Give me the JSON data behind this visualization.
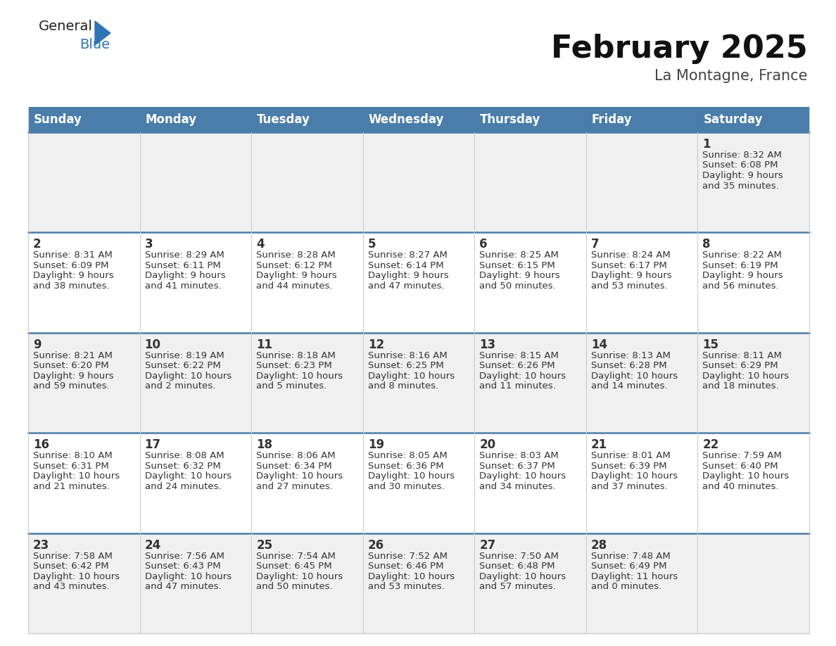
{
  "title": "February 2025",
  "subtitle": "La Montagne, France",
  "header_color": "#4a7daa",
  "header_text_color": "#ffffff",
  "days_of_week": [
    "Sunday",
    "Monday",
    "Tuesday",
    "Wednesday",
    "Thursday",
    "Friday",
    "Saturday"
  ],
  "bg_color": "#ffffff",
  "cell_bg_even": "#f0f0f0",
  "cell_bg_odd": "#ffffff",
  "separator_color": "#4a7daa",
  "text_color": "#333333",
  "grid_line_color": "#cccccc",
  "calendar": [
    [
      null,
      null,
      null,
      null,
      null,
      null,
      {
        "day": "1",
        "sunrise": "8:32 AM",
        "sunset": "6:08 PM",
        "daylight": "9 hours\nand 35 minutes."
      }
    ],
    [
      {
        "day": "2",
        "sunrise": "8:31 AM",
        "sunset": "6:09 PM",
        "daylight": "9 hours\nand 38 minutes."
      },
      {
        "day": "3",
        "sunrise": "8:29 AM",
        "sunset": "6:11 PM",
        "daylight": "9 hours\nand 41 minutes."
      },
      {
        "day": "4",
        "sunrise": "8:28 AM",
        "sunset": "6:12 PM",
        "daylight": "9 hours\nand 44 minutes."
      },
      {
        "day": "5",
        "sunrise": "8:27 AM",
        "sunset": "6:14 PM",
        "daylight": "9 hours\nand 47 minutes."
      },
      {
        "day": "6",
        "sunrise": "8:25 AM",
        "sunset": "6:15 PM",
        "daylight": "9 hours\nand 50 minutes."
      },
      {
        "day": "7",
        "sunrise": "8:24 AM",
        "sunset": "6:17 PM",
        "daylight": "9 hours\nand 53 minutes."
      },
      {
        "day": "8",
        "sunrise": "8:22 AM",
        "sunset": "6:19 PM",
        "daylight": "9 hours\nand 56 minutes."
      }
    ],
    [
      {
        "day": "9",
        "sunrise": "8:21 AM",
        "sunset": "6:20 PM",
        "daylight": "9 hours\nand 59 minutes."
      },
      {
        "day": "10",
        "sunrise": "8:19 AM",
        "sunset": "6:22 PM",
        "daylight": "10 hours\nand 2 minutes."
      },
      {
        "day": "11",
        "sunrise": "8:18 AM",
        "sunset": "6:23 PM",
        "daylight": "10 hours\nand 5 minutes."
      },
      {
        "day": "12",
        "sunrise": "8:16 AM",
        "sunset": "6:25 PM",
        "daylight": "10 hours\nand 8 minutes."
      },
      {
        "day": "13",
        "sunrise": "8:15 AM",
        "sunset": "6:26 PM",
        "daylight": "10 hours\nand 11 minutes."
      },
      {
        "day": "14",
        "sunrise": "8:13 AM",
        "sunset": "6:28 PM",
        "daylight": "10 hours\nand 14 minutes."
      },
      {
        "day": "15",
        "sunrise": "8:11 AM",
        "sunset": "6:29 PM",
        "daylight": "10 hours\nand 18 minutes."
      }
    ],
    [
      {
        "day": "16",
        "sunrise": "8:10 AM",
        "sunset": "6:31 PM",
        "daylight": "10 hours\nand 21 minutes."
      },
      {
        "day": "17",
        "sunrise": "8:08 AM",
        "sunset": "6:32 PM",
        "daylight": "10 hours\nand 24 minutes."
      },
      {
        "day": "18",
        "sunrise": "8:06 AM",
        "sunset": "6:34 PM",
        "daylight": "10 hours\nand 27 minutes."
      },
      {
        "day": "19",
        "sunrise": "8:05 AM",
        "sunset": "6:36 PM",
        "daylight": "10 hours\nand 30 minutes."
      },
      {
        "day": "20",
        "sunrise": "8:03 AM",
        "sunset": "6:37 PM",
        "daylight": "10 hours\nand 34 minutes."
      },
      {
        "day": "21",
        "sunrise": "8:01 AM",
        "sunset": "6:39 PM",
        "daylight": "10 hours\nand 37 minutes."
      },
      {
        "day": "22",
        "sunrise": "7:59 AM",
        "sunset": "6:40 PM",
        "daylight": "10 hours\nand 40 minutes."
      }
    ],
    [
      {
        "day": "23",
        "sunrise": "7:58 AM",
        "sunset": "6:42 PM",
        "daylight": "10 hours\nand 43 minutes."
      },
      {
        "day": "24",
        "sunrise": "7:56 AM",
        "sunset": "6:43 PM",
        "daylight": "10 hours\nand 47 minutes."
      },
      {
        "day": "25",
        "sunrise": "7:54 AM",
        "sunset": "6:45 PM",
        "daylight": "10 hours\nand 50 minutes."
      },
      {
        "day": "26",
        "sunrise": "7:52 AM",
        "sunset": "6:46 PM",
        "daylight": "10 hours\nand 53 minutes."
      },
      {
        "day": "27",
        "sunrise": "7:50 AM",
        "sunset": "6:48 PM",
        "daylight": "10 hours\nand 57 minutes."
      },
      {
        "day": "28",
        "sunrise": "7:48 AM",
        "sunset": "6:49 PM",
        "daylight": "11 hours\nand 0 minutes."
      },
      null
    ]
  ],
  "logo_general_color": "#222222",
  "logo_blue_color": "#2e75b6",
  "logo_triangle_color": "#2e75b6",
  "title_fontsize": 32,
  "subtitle_fontsize": 15,
  "header_fontsize": 12,
  "day_num_fontsize": 12,
  "cell_text_fontsize": 9.5
}
